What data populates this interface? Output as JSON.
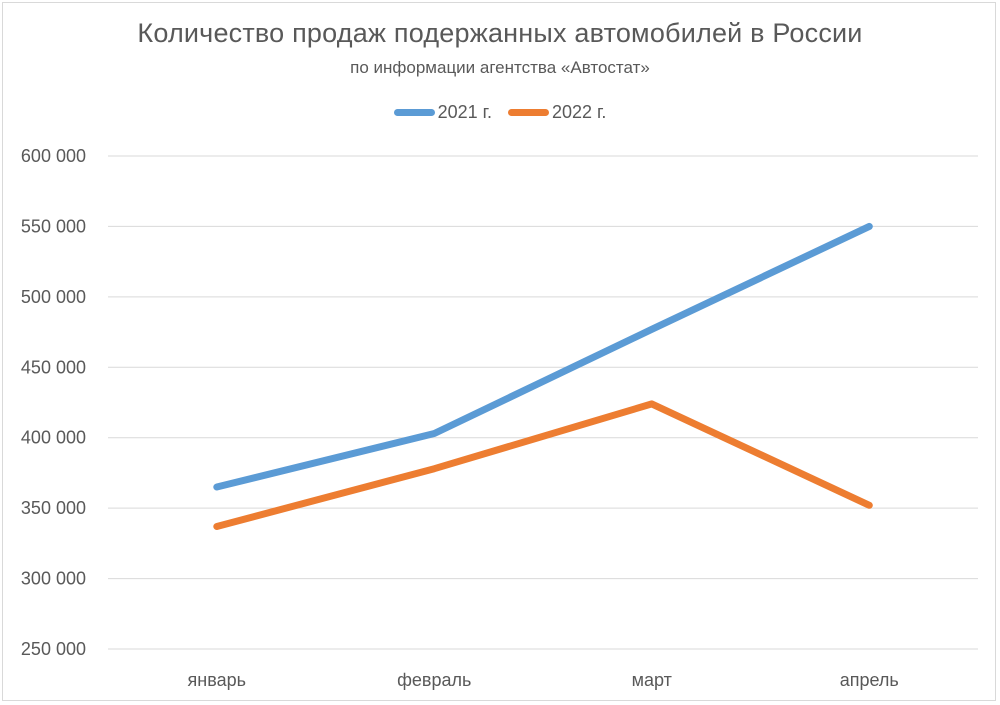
{
  "chart_data": {
    "type": "line",
    "title": "Количество продаж подержанных автомобилей в России",
    "subtitle": "по информации агентства «Автостат»",
    "xlabel": "",
    "ylabel": "",
    "categories": [
      "январь",
      "февраль",
      "март",
      "апрель"
    ],
    "series": [
      {
        "name": "2021 г.",
        "color": "#5B9BD5",
        "values": [
          365000,
          403000,
          477000,
          550000
        ]
      },
      {
        "name": "2022 г.",
        "color": "#ED7D31",
        "values": [
          337000,
          378000,
          424000,
          352000
        ]
      }
    ],
    "ylim": [
      250000,
      600000
    ],
    "yticks": [
      600000,
      550000,
      500000,
      450000,
      400000,
      350000,
      300000,
      250000
    ],
    "ytick_labels": [
      "600 000",
      "550 000",
      "500 000",
      "450 000",
      "400 000",
      "350 000",
      "300 000",
      "250 000"
    ],
    "grid": true,
    "legend_position": "top"
  },
  "legend": {
    "items": [
      {
        "label": "2021 г.",
        "color": "#5B9BD5"
      },
      {
        "label": "2022 г.",
        "color": "#ED7D31"
      }
    ]
  }
}
